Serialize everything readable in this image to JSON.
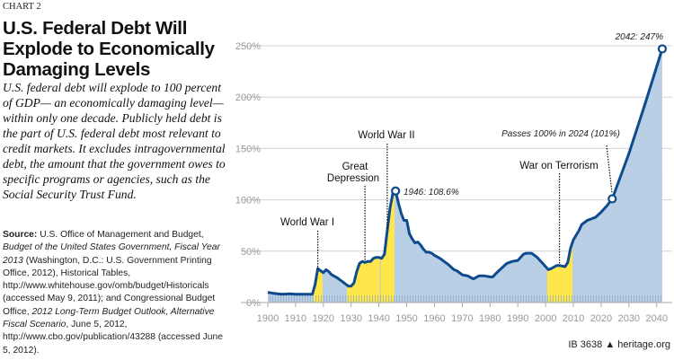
{
  "header": {
    "kicker": "CHART 2",
    "title": "U.S. Federal Debt Will Explode to Economically Damaging Levels",
    "subtitle": "U.S. federal debt will explode to 100 percent of GDP— an economically damaging level—within only one decade. Publicly held debt is the part of U.S. federal debt most relevant to credit markets. It excludes intragovernmental debt, the amount that the government owes to specific programs or agencies, such as the Social Security Trust Fund."
  },
  "source": {
    "label": "Source:",
    "text1": " U.S. Office of Management and Budget, ",
    "ital1": "Budget of the United States Government, Fiscal Year 2013",
    "text2": " (Washington, D.C.: U.S. Government Printing Office, 2012), Historical Tables, http://www.whitehouse.gov/omb/budget/Historicals (accessed May 9, 2011); and Congressional Budget Office, ",
    "ital2": "2012 Long-Term Budget Outlook, Alternative Fiscal Scenario",
    "text3": ", June 5, 2012, http://www.cbo.gov/publication/43288 (accessed June 5, 2012)."
  },
  "footer": {
    "id": "IB 3638",
    "site": "heritage.org"
  },
  "chart_data": {
    "type": "area",
    "ylabel": "",
    "xlabel": "",
    "xlim": [
      1900,
      2042
    ],
    "ylim": [
      0,
      250
    ],
    "xticks": [
      1900,
      1910,
      1920,
      1930,
      1940,
      1950,
      1960,
      1970,
      1980,
      1990,
      2000,
      2010,
      2020,
      2030,
      2040
    ],
    "yticks": [
      0,
      50,
      100,
      150,
      200,
      250
    ],
    "ytick_labels": [
      "0%",
      "50%",
      "100%",
      "150%",
      "200%",
      "250%"
    ],
    "grid": "horizontal",
    "colors": {
      "line": "#0d4b8c",
      "fill": "#b9cfe6",
      "highlight": "#fde74c"
    },
    "series": [
      {
        "x": [
          1900,
          1902,
          1905,
          1908,
          1910,
          1913,
          1916,
          1917,
          1918,
          1919,
          1920,
          1921,
          1922,
          1923,
          1925,
          1927,
          1929,
          1930,
          1931,
          1932,
          1933,
          1934,
          1935,
          1936,
          1937,
          1938,
          1939,
          1940,
          1941,
          1942,
          1943,
          1944,
          1945,
          1946,
          1947,
          1948,
          1949,
          1950,
          1951,
          1952,
          1953,
          1954,
          1955,
          1956,
          1957,
          1958,
          1959,
          1960,
          1962,
          1965,
          1967,
          1968,
          1970,
          1972,
          1974,
          1976,
          1978,
          1980,
          1981,
          1982,
          1984,
          1986,
          1988,
          1990,
          1992,
          1993,
          1995,
          1997,
          1999,
          2001,
          2002,
          2004,
          2005,
          2007,
          2008,
          2009,
          2010,
          2012,
          2013,
          2015,
          2018,
          2020,
          2022,
          2024,
          2030,
          2036,
          2042
        ],
        "y": [
          10,
          9,
          8,
          8.5,
          8,
          8,
          8,
          17,
          33,
          31,
          29,
          32,
          30,
          27,
          24,
          20,
          16,
          16,
          19,
          30,
          38,
          40,
          39,
          40,
          40,
          43,
          44,
          44,
          43,
          47,
          70,
          92,
          106,
          108.6,
          97,
          87,
          80,
          80,
          67,
          62,
          58,
          59,
          56,
          52,
          49,
          49,
          48,
          46,
          43,
          37,
          32,
          31,
          27,
          26,
          23,
          26,
          26,
          25,
          25,
          28,
          33,
          38,
          40,
          41,
          47,
          48,
          48,
          44,
          38,
          32,
          33,
          36,
          36,
          35,
          39,
          53,
          61,
          70,
          76,
          80,
          83,
          88,
          94,
          101,
          145,
          195,
          247
        ]
      }
    ],
    "highlight_periods": [
      {
        "label": "World War I",
        "from": 1916.5,
        "to": 1919.7
      },
      {
        "label": "Great Depression",
        "from": 1928.5,
        "to": 1940.5
      },
      {
        "label": "World War II",
        "from": 1940.5,
        "to": 1945.6
      },
      {
        "label": "War on Terrorism",
        "from": 2000.6,
        "to": 2009.7
      }
    ],
    "annotations": [
      {
        "text": "World War I",
        "x": 1918
      },
      {
        "text": "Great",
        "text2": "Depression",
        "x": 1935
      },
      {
        "text": "World War II",
        "x": 1943
      },
      {
        "text": "1946: 108.6%",
        "x": 1946,
        "y": 108.6
      },
      {
        "text": "War on Terrorism",
        "x": 2005
      },
      {
        "text": "Passes 100% in 2024 (101%)",
        "x": 2024,
        "y": 101
      },
      {
        "text": "2042: 247%",
        "x": 2042,
        "y": 247
      }
    ]
  }
}
